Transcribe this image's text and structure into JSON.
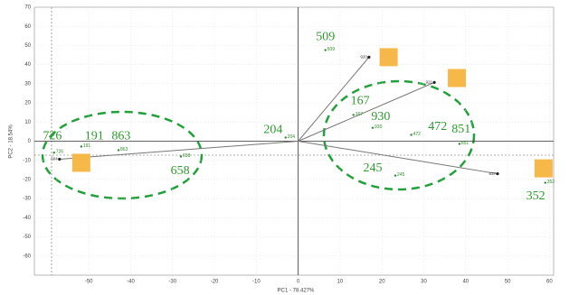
{
  "chart_data": {
    "type": "scatter",
    "x_label": "PC1 - 78.427%",
    "y_label": "PC2 - 18.54%",
    "xlim": [
      -63,
      61
    ],
    "ylim": [
      -70,
      70
    ],
    "xticks": [
      -50,
      -40,
      -30,
      -20,
      -10,
      0,
      10,
      20,
      30,
      40,
      50,
      60
    ],
    "yticks": [
      70,
      60,
      50,
      40,
      30,
      20,
      10,
      0,
      -10,
      -20,
      -30,
      -40,
      -50,
      -60
    ],
    "grid": true,
    "points": {
      "color": "#2a8a2a",
      "labels": [
        "509",
        "167",
        "930",
        "472",
        "851",
        "245",
        "352",
        "204",
        "191",
        "863",
        "658",
        "726"
      ],
      "x": [
        6.5,
        13.2,
        17.8,
        27,
        38.5,
        23.2,
        59,
        -3,
        -51.8,
        -42.9,
        -28,
        -58.3
      ],
      "values": [
        47.6,
        13.7,
        7,
        3.3,
        -1.4,
        -18,
        -21.7,
        1.9,
        -2.8,
        -4.7,
        -8,
        -6
      ]
    },
    "vectors": {
      "color": "#777777",
      "labels": [
        "920",
        "921",
        "837",
        "604"
      ],
      "x": [
        16.9,
        32.5,
        47.6,
        -57
      ],
      "values": [
        43.9,
        30.7,
        -17,
        -9.4
      ]
    },
    "squares": {
      "color": "#f7b84a",
      "x": [
        21.6,
        37.9,
        58.6,
        -51.8
      ],
      "values": [
        43.9,
        33,
        -14.2,
        -11.3
      ]
    },
    "annotations": [
      {
        "text": "509",
        "x": 6.5,
        "y": 54.2
      },
      {
        "text": "167",
        "x": 14.8,
        "y": 20.8
      },
      {
        "text": "930",
        "x": 19.7,
        "y": 12.7
      },
      {
        "text": "472",
        "x": 33.3,
        "y": 7.5
      },
      {
        "text": "851",
        "x": 38.9,
        "y": 6.1
      },
      {
        "text": "245",
        "x": 17.8,
        "y": -14.2
      },
      {
        "text": "352",
        "x": 56.7,
        "y": -28.8
      },
      {
        "text": "204",
        "x": -6,
        "y": 5.7
      },
      {
        "text": "191",
        "x": -48.7,
        "y": 2.4
      },
      {
        "text": "863",
        "x": -42.3,
        "y": 2.4
      },
      {
        "text": "726",
        "x": -58.7,
        "y": 2.4
      },
      {
        "text": "658",
        "x": -28.2,
        "y": -15.6
      }
    ]
  }
}
